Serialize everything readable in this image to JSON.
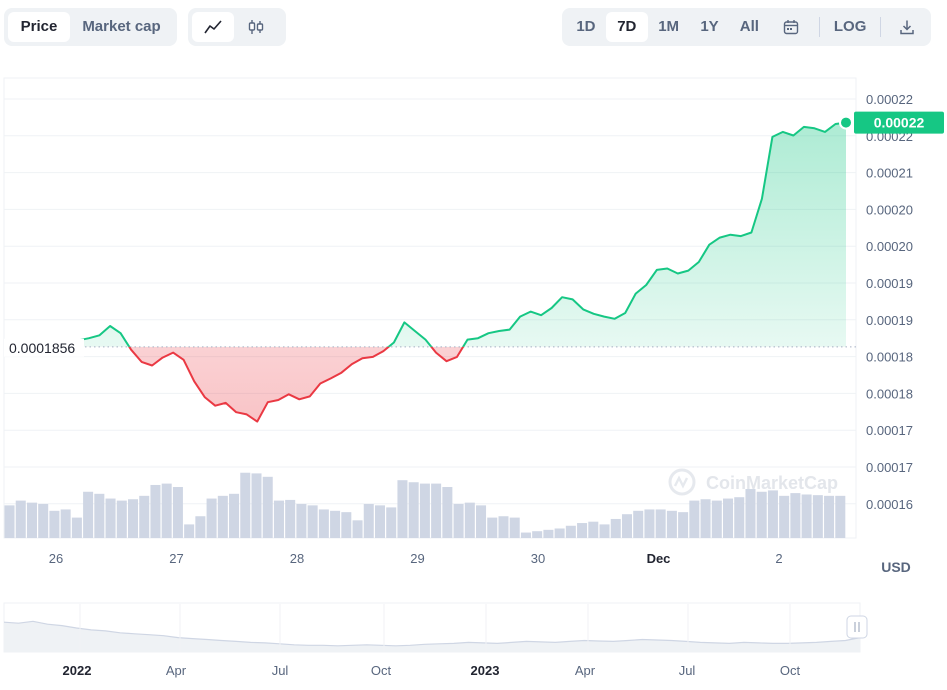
{
  "toolbar": {
    "metric_tabs": [
      {
        "label": "Price",
        "active": true
      },
      {
        "label": "Market cap",
        "active": false
      }
    ],
    "chart_type_icons": [
      "line-chart-icon",
      "candlestick-icon"
    ],
    "range_tabs": [
      {
        "label": "1D",
        "active": false
      },
      {
        "label": "7D",
        "active": true
      },
      {
        "label": "1M",
        "active": false
      },
      {
        "label": "1Y",
        "active": false
      },
      {
        "label": "All",
        "active": false
      }
    ],
    "calendar_icon": "calendar-icon",
    "log_label": "LOG",
    "download_icon": "download-icon"
  },
  "colors": {
    "up": "#16c784",
    "down": "#ea3943",
    "volume": "#cfd6e4",
    "grid": "#eff2f5",
    "text": "#58667e"
  },
  "watermark": "CoinMarketCap",
  "currency_label": "USD",
  "reference_label": "0.0001856",
  "current_label": "0.00022",
  "chart_data": {
    "type": "line",
    "y_tick_labels": [
      "0.00022",
      "0.00022",
      "0.00021",
      "0.00020",
      "0.00020",
      "0.00019",
      "0.00019",
      "0.00018",
      "0.00018",
      "0.00017",
      "0.00017",
      "0.00016"
    ],
    "ylim": [
      0.000159,
      0.000223
    ],
    "x_tick_labels": [
      "26",
      "27",
      "28",
      "29",
      "30",
      "Dec",
      "2"
    ],
    "reference_value": 0.0001856,
    "series": [
      {
        "values": [
          0.0001862,
          0.0001865,
          0.0001868,
          0.0001872,
          0.0001885,
          0.0001875,
          0.0001852,
          0.0001835,
          0.000183,
          0.0001841,
          0.0001848,
          0.0001838,
          0.0001808,
          0.0001786,
          0.0001774,
          0.0001778,
          0.0001765,
          0.0001762,
          0.0001752,
          0.0001779,
          0.0001782,
          0.000179,
          0.0001783,
          0.0001787,
          0.0001805,
          0.0001812,
          0.000182,
          0.0001832,
          0.000184,
          0.0001842,
          0.000185,
          0.0001862,
          0.000189,
          0.0001878,
          0.0001866,
          0.0001848,
          0.0001836,
          0.0001842,
          0.0001866,
          0.0001868,
          0.0001875,
          0.0001878,
          0.000188,
          0.0001898,
          0.0001905,
          0.00019,
          0.000191,
          0.0001925,
          0.0001922,
          0.0001908,
          0.0001902,
          0.0001898,
          0.0001895,
          0.0001903,
          0.000193,
          0.0001942,
          0.0001963,
          0.0001965,
          0.0001958,
          0.0001962,
          0.0001974,
          0.0001998,
          0.0002008,
          0.0002012,
          0.000201,
          0.0002015,
          0.0002062,
          0.0002148,
          0.0002155,
          0.000215,
          0.0002162,
          0.000216,
          0.0002155,
          0.0002166,
          0.0002168
        ]
      }
    ],
    "volume": [
      0.48,
      0.55,
      0.52,
      0.5,
      0.4,
      0.42,
      0.3,
      0.68,
      0.65,
      0.58,
      0.55,
      0.57,
      0.62,
      0.78,
      0.8,
      0.75,
      0.2,
      0.32,
      0.58,
      0.62,
      0.65,
      0.96,
      0.95,
      0.9,
      0.55,
      0.56,
      0.5,
      0.48,
      0.42,
      0.4,
      0.38,
      0.26,
      0.5,
      0.48,
      0.45,
      0.85,
      0.82,
      0.8,
      0.8,
      0.75,
      0.5,
      0.52,
      0.48,
      0.3,
      0.32,
      0.3,
      0.08,
      0.1,
      0.12,
      0.14,
      0.18,
      0.22,
      0.24,
      0.2,
      0.28,
      0.35,
      0.4,
      0.42,
      0.42,
      0.4,
      0.38,
      0.55,
      0.57,
      0.55,
      0.58,
      0.6,
      0.72,
      0.68,
      0.7,
      0.62,
      0.66,
      0.64,
      0.63,
      0.62,
      0.62
    ],
    "overview_x_tick_labels": [
      "2022",
      "Apr",
      "Jul",
      "Oct",
      "2023",
      "Apr",
      "Jul",
      "Oct"
    ],
    "overview_values": [
      0.62,
      0.6,
      0.64,
      0.58,
      0.55,
      0.5,
      0.46,
      0.44,
      0.4,
      0.38,
      0.36,
      0.34,
      0.3,
      0.28,
      0.26,
      0.24,
      0.22,
      0.2,
      0.19,
      0.17,
      0.15,
      0.14,
      0.14,
      0.13,
      0.14,
      0.15,
      0.14,
      0.13,
      0.14,
      0.16,
      0.17,
      0.18,
      0.2,
      0.19,
      0.18,
      0.2,
      0.22,
      0.21,
      0.2,
      0.22,
      0.24,
      0.23,
      0.22,
      0.24,
      0.26,
      0.25,
      0.24,
      0.22,
      0.2,
      0.19,
      0.18,
      0.2,
      0.19,
      0.18,
      0.18,
      0.19,
      0.2,
      0.22,
      0.24,
      0.3
    ]
  }
}
